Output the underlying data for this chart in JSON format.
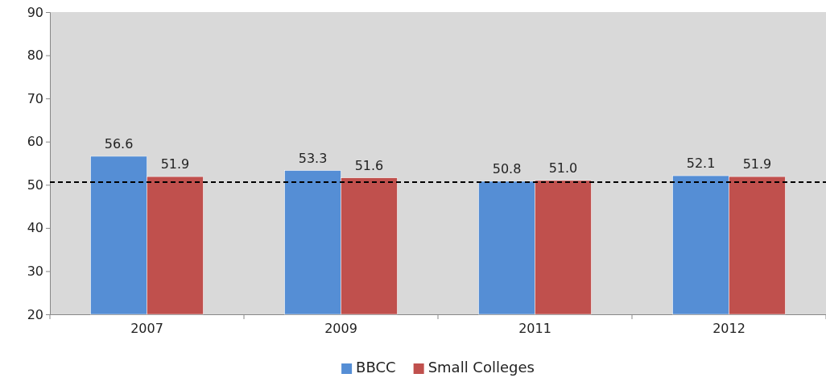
{
  "chart_data": {
    "type": "bar",
    "categories": [
      "2007",
      "2009",
      "2011",
      "2012"
    ],
    "series": [
      {
        "name": "BBCC",
        "color": "#558ed5",
        "values": [
          56.6,
          53.3,
          50.8,
          52.1
        ],
        "value_labels": [
          "56.6",
          "53.3",
          "50.8",
          "52.1"
        ]
      },
      {
        "name": "Small Colleges",
        "color": "#c0504d",
        "values": [
          51.9,
          51.6,
          51.0,
          51.9
        ],
        "value_labels": [
          "51.9",
          "51.6",
          "51.0",
          "51.9"
        ]
      }
    ],
    "ylim": [
      20,
      90
    ],
    "yticks": [
      20,
      30,
      40,
      50,
      60,
      70,
      80,
      90
    ],
    "grid": false,
    "legend": "bottom",
    "ref_lines": [
      {
        "axis": "y",
        "value": 50.6,
        "line_style": "dashed",
        "color": "#000000"
      }
    ]
  }
}
